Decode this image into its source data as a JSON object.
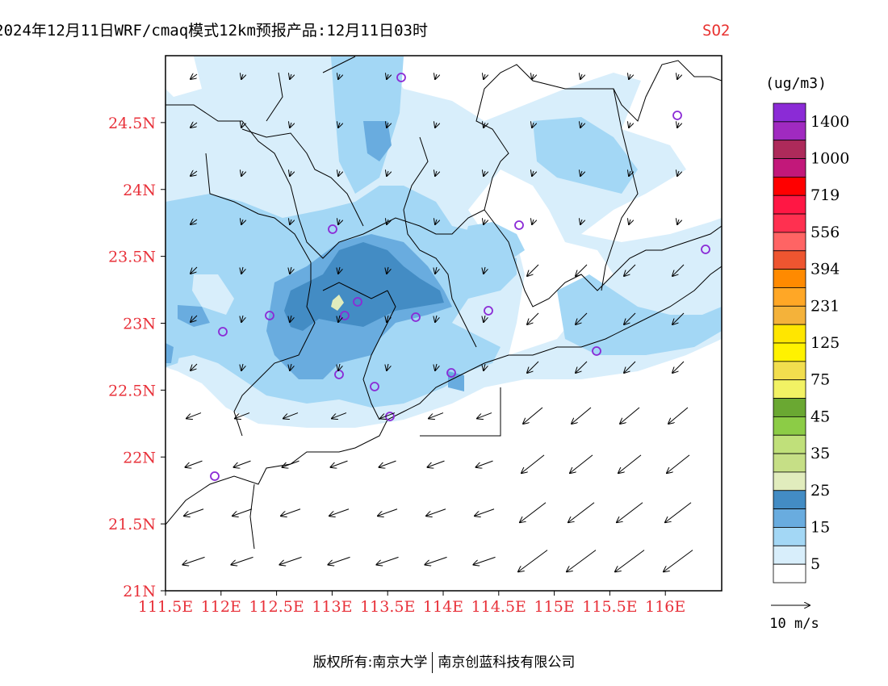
{
  "title": {
    "main": "2024年12月11日WRF/cmaq模式12km预报产品:12月11日03时",
    "species": "SO2",
    "species_color": "#e8312f"
  },
  "axes": {
    "lat_labels": [
      "24.5N",
      "24N",
      "23.5N",
      "23N",
      "22.5N",
      "22N",
      "21.5N",
      "21N"
    ],
    "lon_labels": [
      "111.5E",
      "112E",
      "112.5E",
      "113E",
      "113.5E",
      "114E",
      "114.5E",
      "115E",
      "115.5E",
      "116E"
    ],
    "lat_range": [
      21.0,
      25.0
    ],
    "lon_range": [
      111.5,
      116.5
    ],
    "label_color": "#e8313a"
  },
  "legend": {
    "unit": "(ug/m3)",
    "levels": [
      {
        "label": "1400",
        "color": "#8b2bd6"
      },
      {
        "label": "",
        "color": "#a02ac0"
      },
      {
        "label": "1000",
        "color": "#ad2a5a"
      },
      {
        "label": "",
        "color": "#c2187a"
      },
      {
        "label": "719",
        "color": "#ff0000"
      },
      {
        "label": "",
        "color": "#ff1744"
      },
      {
        "label": "556",
        "color": "#ff3050"
      },
      {
        "label": "",
        "color": "#ff6464"
      },
      {
        "label": "394",
        "color": "#ee5530"
      },
      {
        "label": "",
        "color": "#ff8a00"
      },
      {
        "label": "231",
        "color": "#ffa726"
      },
      {
        "label": "",
        "color": "#f4b23a"
      },
      {
        "label": "125",
        "color": "#ffe600"
      },
      {
        "label": "",
        "color": "#fff200"
      },
      {
        "label": "75",
        "color": "#f2de4e"
      },
      {
        "label": "",
        "color": "#f2f264"
      },
      {
        "label": "45",
        "color": "#6aa832"
      },
      {
        "label": "",
        "color": "#8ccc46"
      },
      {
        "label": "35",
        "color": "#c0e07a"
      },
      {
        "label": "",
        "color": "#c6df86"
      },
      {
        "label": "25",
        "color": "#e1ecbd"
      },
      {
        "label": "",
        "color": "#438cc4"
      },
      {
        "label": "15",
        "color": "#69acdf"
      },
      {
        "label": "",
        "color": "#a3d7f5"
      },
      {
        "label": "5",
        "color": "#d8eefb"
      },
      {
        "label": "",
        "color": "#ffffff"
      }
    ]
  },
  "wind_ref": {
    "label": "10 m/s"
  },
  "footer": {
    "left": "版权所有:南京大学",
    "right": "南京创蓝科技有限公司"
  }
}
